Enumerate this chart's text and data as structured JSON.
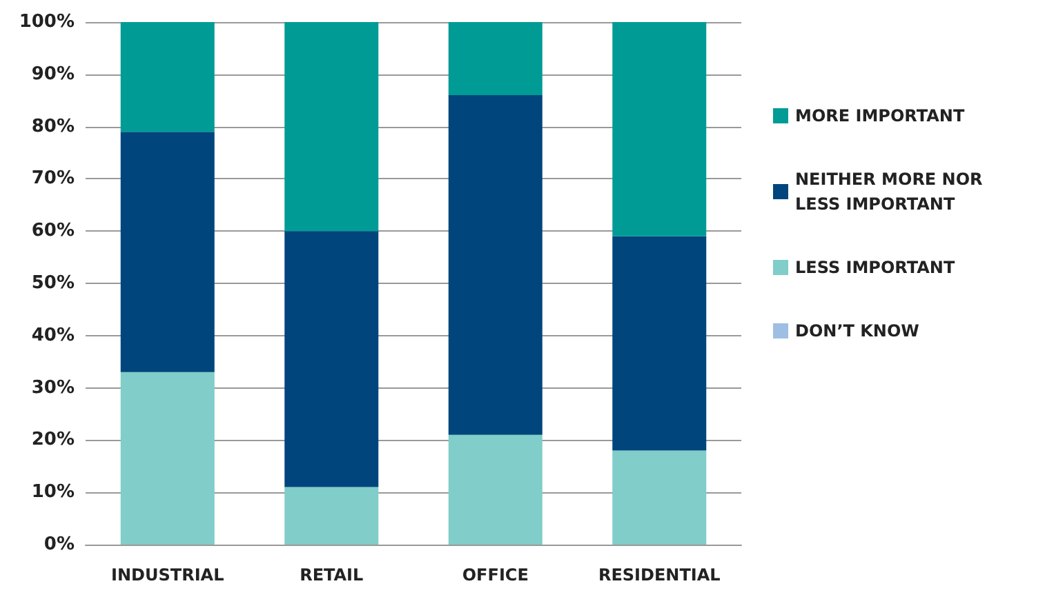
{
  "chart_data": {
    "type": "bar",
    "stacked": true,
    "categories": [
      "INDUSTRIAL",
      "RETAIL",
      "OFFICE",
      "RESIDENTIAL"
    ],
    "series": [
      {
        "name": "LESS IMPORTANT",
        "color": "#80cdc9",
        "values": [
          33,
          11,
          21,
          18
        ]
      },
      {
        "name": "NEITHER MORE NOR LESS IMPORTANT",
        "color": "#00457c",
        "values": [
          46,
          49,
          65,
          41
        ]
      },
      {
        "name": "MORE IMPORTANT",
        "color": "#009b95",
        "values": [
          21,
          40,
          14,
          41
        ]
      },
      {
        "name": "DON’T KNOW",
        "color": "#9ebfe3",
        "values": [
          0,
          0,
          0,
          0
        ]
      }
    ],
    "ylim": [
      0,
      100
    ],
    "yticks": [
      {
        "value": 0,
        "label": "0%"
      },
      {
        "value": 10,
        "label": "10%"
      },
      {
        "value": 20,
        "label": "20%"
      },
      {
        "value": 30,
        "label": "30%"
      },
      {
        "value": 40,
        "label": "40%"
      },
      {
        "value": 50,
        "label": "50%"
      },
      {
        "value": 60,
        "label": "60%"
      },
      {
        "value": 70,
        "label": "70%"
      },
      {
        "value": 80,
        "label": "80%"
      },
      {
        "value": 90,
        "label": "90%"
      },
      {
        "value": 100,
        "label": "100%"
      }
    ],
    "grid": "y",
    "legend": "right"
  }
}
